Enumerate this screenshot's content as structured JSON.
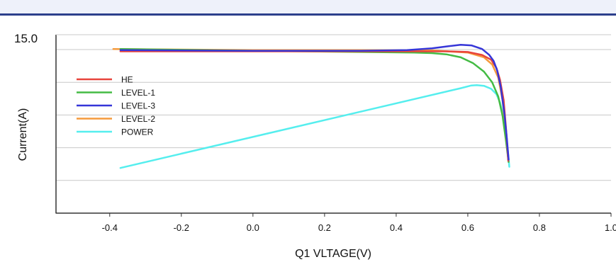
{
  "chart_data": {
    "type": "line",
    "title": "",
    "xlabel": "Q1 VLTAGE(V)",
    "ylabel": "Current(A)",
    "xlim": [
      -0.55,
      1.0
    ],
    "ylim": [
      0,
      15.0
    ],
    "x_ticks": [
      -0.4,
      -0.2,
      0.0,
      0.2,
      0.4,
      0.6,
      0.8,
      1.0
    ],
    "x_tick_labels": [
      "-0.4",
      "-0.2",
      "0.0",
      "0.2",
      "0.4",
      "0.6",
      "0.8",
      "1.0"
    ],
    "y_gridlines": [
      2.75,
      5.5,
      8.25,
      11.0,
      13.75
    ],
    "y_tick_labels": [
      {
        "value": 15.0,
        "label": "15.0"
      }
    ],
    "grid": true,
    "legend_position": "left",
    "series": [
      {
        "name": "HE",
        "color": "#e8443c",
        "x": [
          -0.37,
          0.0,
          0.3,
          0.45,
          0.54,
          0.6,
          0.64,
          0.665,
          0.68,
          0.69,
          0.7,
          0.707,
          0.713
        ],
        "y": [
          13.6,
          13.6,
          13.6,
          13.6,
          13.6,
          13.55,
          13.3,
          12.9,
          12.2,
          11.2,
          9.5,
          7.0,
          4.4
        ]
      },
      {
        "name": "LEVEL-1",
        "color": "#44bb44",
        "x": [
          -0.37,
          0.0,
          0.3,
          0.45,
          0.5,
          0.54,
          0.58,
          0.615,
          0.645,
          0.668,
          0.685,
          0.697,
          0.706,
          0.714
        ],
        "y": [
          13.8,
          13.65,
          13.55,
          13.5,
          13.45,
          13.35,
          13.1,
          12.6,
          11.9,
          11.0,
          9.8,
          8.2,
          6.2,
          4.3
        ]
      },
      {
        "name": "LEVEL-3",
        "color": "#3636d8",
        "x": [
          -0.37,
          0.0,
          0.3,
          0.43,
          0.5,
          0.55,
          0.58,
          0.61,
          0.64,
          0.66,
          0.672,
          0.682,
          0.692,
          0.702,
          0.709,
          0.714
        ],
        "y": [
          13.7,
          13.65,
          13.65,
          13.7,
          13.85,
          14.05,
          14.15,
          14.1,
          13.8,
          13.3,
          12.8,
          12.0,
          10.6,
          8.4,
          6.3,
          4.5
        ]
      },
      {
        "name": "LEVEL-2",
        "color": "#f59a3c",
        "x": [
          -0.39,
          0.0,
          0.3,
          0.5,
          0.6,
          0.645,
          0.668,
          0.685,
          0.697,
          0.706,
          0.713
        ],
        "y": [
          13.8,
          13.7,
          13.7,
          13.68,
          13.5,
          13.1,
          12.5,
          11.4,
          9.5,
          7.0,
          4.5
        ]
      },
      {
        "name": "POWER",
        "color": "#55eeee",
        "x": [
          -0.37,
          0.58,
          0.61,
          0.625,
          0.645,
          0.665,
          0.68,
          0.69,
          0.7,
          0.706,
          0.712,
          0.716
        ],
        "y": [
          3.8,
          10.5,
          10.73,
          10.76,
          10.7,
          10.45,
          10.0,
          9.3,
          8.0,
          6.8,
          5.2,
          3.9
        ]
      }
    ]
  }
}
